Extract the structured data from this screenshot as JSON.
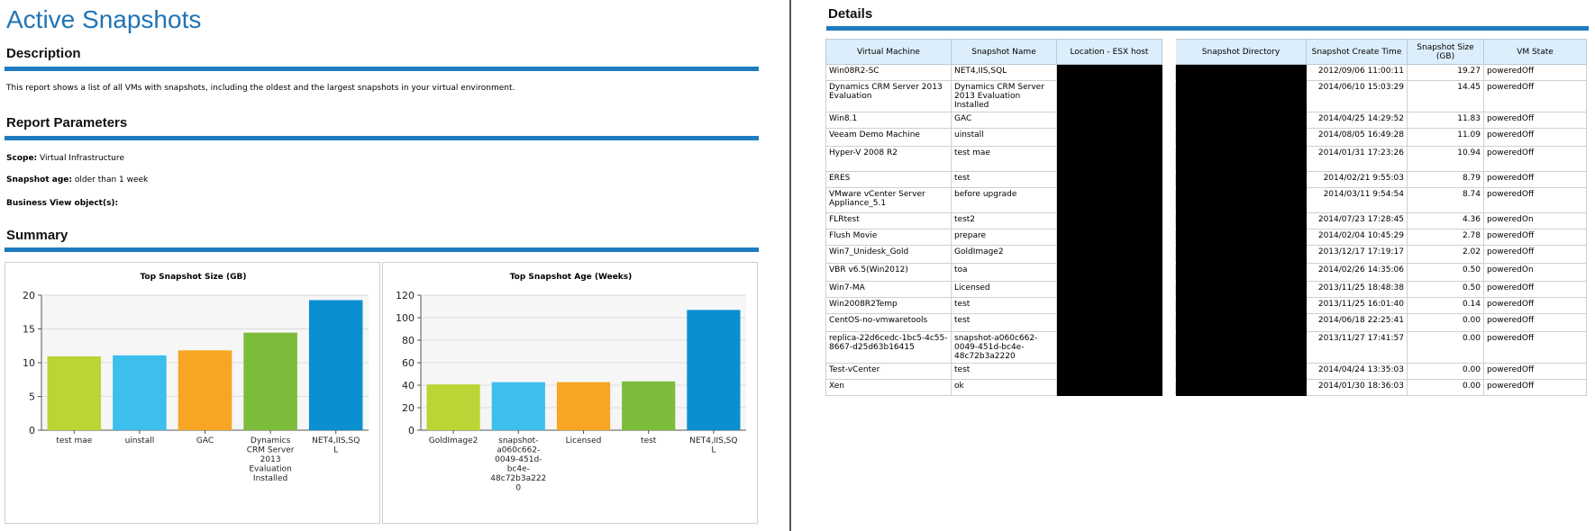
{
  "left": {
    "title": "Active Snapshots",
    "description_heading": "Description",
    "description_text": "This report shows a list of all VMs with snapshots, including the oldest and the largest snapshots in your virtual environment.",
    "parameters_heading": "Report Parameters",
    "params": [
      {
        "label": "Scope:",
        "value": "Virtual Infrastructure"
      },
      {
        "label": "Snapshot age:",
        "value": "older than 1 week"
      },
      {
        "label": "Business View object(s):",
        "value": ""
      }
    ],
    "summary_heading": "Summary"
  },
  "chart_data": [
    {
      "type": "bar",
      "title": "Top Snapshot Size (GB)",
      "categories": [
        [
          "test mae"
        ],
        [
          "uinstall"
        ],
        [
          "GAC"
        ],
        [
          "Dynamics",
          "CRM Server",
          "2013",
          "Evaluation",
          "Installed"
        ],
        [
          "NET4,IIS,SQ",
          "L"
        ]
      ],
      "values": [
        10.94,
        11.09,
        11.83,
        14.45,
        19.27
      ],
      "colors": [
        "#bcd434",
        "#3cbfec",
        "#f6a623",
        "#7dbb3b",
        "#0a8fd0"
      ],
      "ylim": [
        0,
        20
      ],
      "yticks": [
        0,
        5,
        10,
        15,
        20
      ],
      "grid": true
    },
    {
      "type": "bar",
      "title": "Top Snapshot Age (Weeks)",
      "categories": [
        [
          "GoldImage2"
        ],
        [
          "snapshot-",
          "a060c662-",
          "0049-451d-",
          "bc4e-",
          "48c72b3a222",
          "0"
        ],
        [
          "Licensed"
        ],
        [
          "test"
        ],
        [
          "NET4,IIS,SQ",
          "L"
        ]
      ],
      "values": [
        40.7,
        42.7,
        42.7,
        43.4,
        106.9
      ],
      "colors": [
        "#bcd434",
        "#3cbfec",
        "#f6a623",
        "#7dbb3b",
        "#0a8fd0"
      ],
      "ylim": [
        0,
        120
      ],
      "yticks": [
        0,
        20,
        40,
        60,
        80,
        100,
        120
      ],
      "grid": true
    }
  ],
  "details": {
    "heading": "Details",
    "columns": [
      "Virtual Machine",
      "Snapshot Name",
      "Location - ESX host",
      "",
      "Snapshot Directory",
      "Snapshot Create Time",
      "Snapshot Size (GB)",
      "VM State"
    ],
    "rows": [
      {
        "vm": "Win08R2-SC",
        "name": "NET4,IIS,SQL",
        "time": "2012/09/06 11:00:11",
        "size": "19.27",
        "state": "poweredOff",
        "tall": false
      },
      {
        "vm": "Dynamics CRM Server 2013 Evaluation",
        "name": "Dynamics CRM Server 2013 Evaluation Installed",
        "time": "2014/06/10 15:03:29",
        "size": "14.45",
        "state": "poweredOff",
        "tall": true
      },
      {
        "vm": "Win8.1",
        "name": "GAC",
        "time": "2014/04/25 14:29:52",
        "size": "11.83",
        "state": "poweredOff",
        "tall": false
      },
      {
        "vm": "Veeam Demo Machine",
        "name": "uinstall",
        "time": "2014/08/05 16:49:28",
        "size": "11.09",
        "state": "poweredOff",
        "tall": "b"
      },
      {
        "vm": "Hyper-V 2008 R2",
        "name": "test mae",
        "time": "2014/01/31 17:23:26",
        "size": "10.94",
        "state": "poweredOff",
        "tall": true
      },
      {
        "vm": "ERES",
        "name": "test",
        "time": "2014/02/21 9:55:03",
        "size": "8.79",
        "state": "poweredOff",
        "tall": false
      },
      {
        "vm": "VMware vCenter Server Appliance_5.1",
        "name": "before upgrade",
        "time": "2014/03/11 9:54:54",
        "size": "8.74",
        "state": "poweredOff",
        "tall": true
      },
      {
        "vm": "FLRtest",
        "name": "test2",
        "time": "2014/07/23 17:28:45",
        "size": "4.36",
        "state": "poweredOn",
        "tall": false
      },
      {
        "vm": "Flush Movie",
        "name": "prepare",
        "time": "2014/02/04 10:45:29",
        "size": "2.78",
        "state": "poweredOff",
        "tall": false
      },
      {
        "vm": "Win7_Unidesk_Gold",
        "name": "GoldImage2",
        "time": "2013/12/17 17:19:17",
        "size": "2.02",
        "state": "poweredOff",
        "tall": "b"
      },
      {
        "vm": "VBR v6.5(Win2012)",
        "name": "toa",
        "time": "2014/02/26 14:35:06",
        "size": "0.50",
        "state": "poweredOn",
        "tall": "b"
      },
      {
        "vm": "Win7-MA",
        "name": "Licensed",
        "time": "2013/11/25 18:48:38",
        "size": "0.50",
        "state": "poweredOff",
        "tall": false
      },
      {
        "vm": "Win2008R2Temp",
        "name": "test",
        "time": "2013/11/25 16:01:40",
        "size": "0.14",
        "state": "poweredOff",
        "tall": false
      },
      {
        "vm": "CentOS-no-vmwaretools",
        "name": "test",
        "time": "2014/06/18 22:25:41",
        "size": "0.00",
        "state": "poweredOff",
        "tall": "b"
      },
      {
        "vm": "replica-22d6cedc-1bc5-4c55-8667-d25d63b16415",
        "name": "snapshot-a060c662-0049-451d-bc4e-48c72b3a2220",
        "time": "2013/11/27 17:41:57",
        "size": "0.00",
        "state": "poweredOff",
        "tall": true
      },
      {
        "vm": "Test-vCenter",
        "name": "test",
        "time": "2014/04/24 13:35:03",
        "size": "0.00",
        "state": "poweredOff",
        "tall": false
      },
      {
        "vm": "Xen",
        "name": "ok",
        "time": "2014/01/30 18:36:03",
        "size": "0.00",
        "state": "poweredOff",
        "tall": false
      }
    ]
  }
}
